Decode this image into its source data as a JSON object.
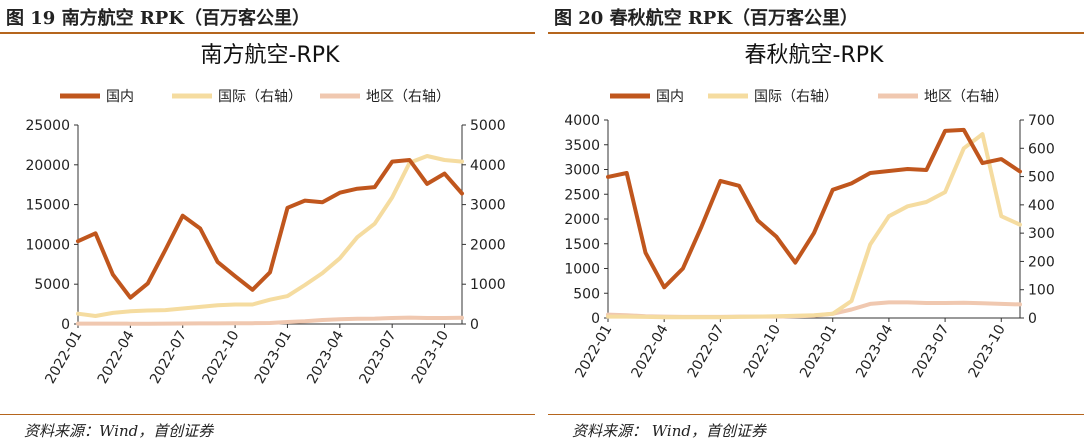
{
  "figures": [
    {
      "caption": "图 19  南方航空 RPK（百万客公里）",
      "source": "资料来源：Wind，首创证券",
      "chart_data": {
        "type": "line",
        "title": "南方航空-RPK",
        "x": [
          "2022-01",
          "2022-02",
          "2022-03",
          "2022-04",
          "2022-05",
          "2022-06",
          "2022-07",
          "2022-08",
          "2022-09",
          "2022-10",
          "2022-11",
          "2022-12",
          "2023-01",
          "2023-02",
          "2023-03",
          "2023-04",
          "2023-05",
          "2023-06",
          "2023-07",
          "2023-08",
          "2023-09",
          "2023-10",
          "2023-11"
        ],
        "x_tick_labels": [
          "2022-01",
          "2022-04",
          "2022-07",
          "2022-10",
          "2023-01",
          "2023-04",
          "2023-07",
          "2023-10"
        ],
        "y_left_ticks": [
          "0",
          "5000",
          "10000",
          "15000",
          "20000",
          "25000"
        ],
        "y_right_ticks": [
          "0",
          "1000",
          "2000",
          "3000",
          "4000",
          "5000"
        ],
        "ylim_left": [
          0,
          25000
        ],
        "ylim_right": [
          0,
          5000
        ],
        "legend_position": "top",
        "series": [
          {
            "name": "国内",
            "axis": "left",
            "color": "#c0561d",
            "width": 4,
            "values": [
              10400,
              11400,
              6200,
              3300,
              5100,
              9300,
              13600,
              12000,
              7800,
              6000,
              4300,
              6500,
              14600,
              15500,
              15300,
              16500,
              17000,
              17200,
              20400,
              20600,
              17600,
              18900,
              16400
            ]
          },
          {
            "name": "国际（右轴）",
            "axis": "right",
            "color": "#f5dca0",
            "width": 4,
            "values": [
              260,
              200,
              280,
              320,
              340,
              350,
              390,
              430,
              470,
              490,
              490,
              610,
              700,
              980,
              1280,
              1650,
              2180,
              2520,
              3180,
              4050,
              4220,
              4120,
              4080
            ]
          },
          {
            "name": "地区（右轴）",
            "axis": "right",
            "color": "#f0c8b0",
            "width": 4,
            "values": [
              10,
              10,
              10,
              8,
              8,
              10,
              12,
              14,
              15,
              18,
              20,
              25,
              50,
              70,
              100,
              120,
              130,
              135,
              150,
              160,
              150,
              150,
              155
            ]
          }
        ]
      }
    },
    {
      "caption": "图 20  春秋航空 RPK（百万客公里）",
      "source": "资料来源：  Wind，首创证券",
      "chart_data": {
        "type": "line",
        "title": "春秋航空-RPK",
        "x": [
          "2022-01",
          "2022-02",
          "2022-03",
          "2022-04",
          "2022-05",
          "2022-06",
          "2022-07",
          "2022-08",
          "2022-09",
          "2022-10",
          "2022-11",
          "2022-12",
          "2023-01",
          "2023-02",
          "2023-03",
          "2023-04",
          "2023-05",
          "2023-06",
          "2023-07",
          "2023-08",
          "2023-09",
          "2023-10",
          "2023-11"
        ],
        "x_tick_labels": [
          "2022-01",
          "2022-04",
          "2022-07",
          "2022-10",
          "2023-01",
          "2023-04",
          "2023-07",
          "2023-10"
        ],
        "y_left_ticks": [
          "0",
          "500",
          "1000",
          "1500",
          "2000",
          "2500",
          "3000",
          "3500",
          "4000"
        ],
        "y_right_ticks": [
          "0",
          "100",
          "200",
          "300",
          "400",
          "500",
          "600",
          "700"
        ],
        "ylim_left": [
          0,
          4000
        ],
        "ylim_right": [
          0,
          700
        ],
        "legend_position": "top",
        "series": [
          {
            "name": "国内",
            "axis": "left",
            "color": "#c0561d",
            "width": 4,
            "values": [
              2850,
              2930,
              1320,
              620,
              1000,
              1850,
              2770,
              2670,
              1970,
              1640,
              1120,
              1720,
              2590,
              2720,
              2930,
              2970,
              3010,
              2990,
              3780,
              3800,
              3130,
              3210,
              2960
            ]
          },
          {
            "name": "国际（右轴）",
            "axis": "right",
            "color": "#f5dca0",
            "width": 4,
            "values": [
              5,
              5,
              4,
              3,
              3,
              3,
              3,
              4,
              5,
              6,
              8,
              10,
              15,
              60,
              260,
              360,
              395,
              410,
              445,
              600,
              650,
              360,
              330
            ]
          },
          {
            "name": "地区（右轴）",
            "axis": "right",
            "color": "#f0c8b0",
            "width": 4,
            "values": [
              12,
              10,
              6,
              5,
              4,
              4,
              4,
              5,
              5,
              5,
              6,
              8,
              15,
              30,
              50,
              55,
              55,
              53,
              53,
              54,
              52,
              50,
              48
            ]
          }
        ]
      }
    }
  ]
}
